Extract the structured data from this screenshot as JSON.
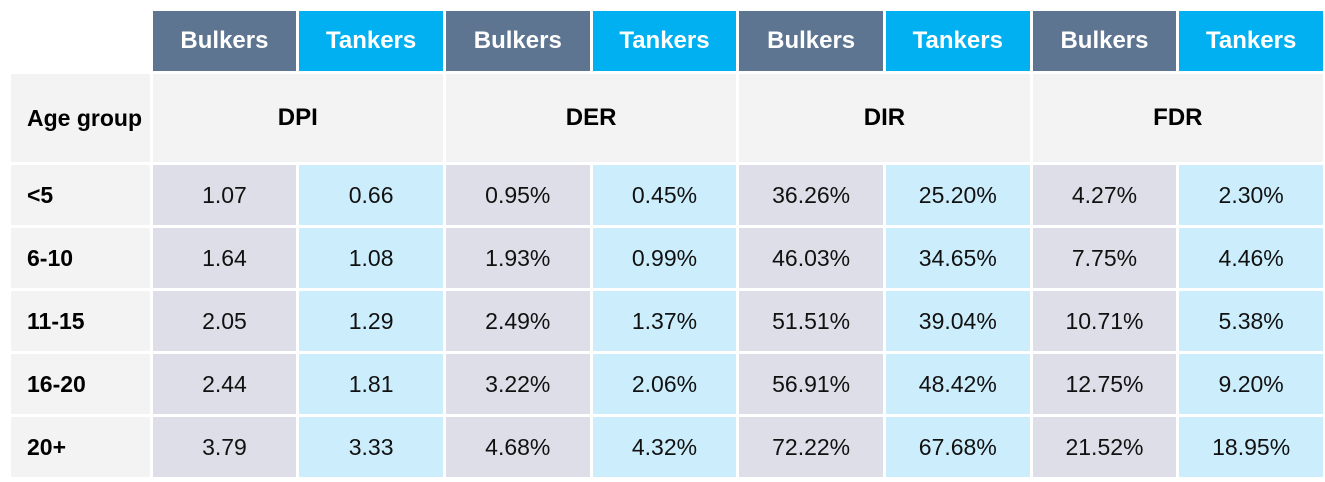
{
  "columns": {
    "bulkers": "Bulkers",
    "tankers": "Tankers"
  },
  "metrics_header": {
    "age_group_label": "Age group",
    "metrics": [
      "DPI",
      "DER",
      "DIR",
      "FDR"
    ]
  },
  "rows": [
    {
      "age": "<5",
      "values": [
        "1.07",
        "0.66",
        "0.95%",
        "0.45%",
        "36.26%",
        "25.20%",
        "4.27%",
        "2.30%"
      ]
    },
    {
      "age": "6-10",
      "values": [
        "1.64",
        "1.08",
        "1.93%",
        "0.99%",
        "46.03%",
        "34.65%",
        "7.75%",
        "4.46%"
      ]
    },
    {
      "age": "11-15",
      "values": [
        "2.05",
        "1.29",
        "2.49%",
        "1.37%",
        "51.51%",
        "39.04%",
        "10.71%",
        "5.38%"
      ]
    },
    {
      "age": "16-20",
      "values": [
        "2.44",
        "1.81",
        "3.22%",
        "2.06%",
        "56.91%",
        "48.42%",
        "12.75%",
        "9.20%"
      ]
    },
    {
      "age": "20+",
      "values": [
        "3.79",
        "3.33",
        "4.68%",
        "4.32%",
        "72.22%",
        "67.68%",
        "21.52%",
        "18.95%"
      ]
    }
  ],
  "colors": {
    "bulkers_header": "#5d7591",
    "tankers_header": "#00b0f0",
    "bulkers_cell": "#dddee8",
    "tankers_cell": "#cceefc",
    "label_cell": "#f2f3f2"
  }
}
